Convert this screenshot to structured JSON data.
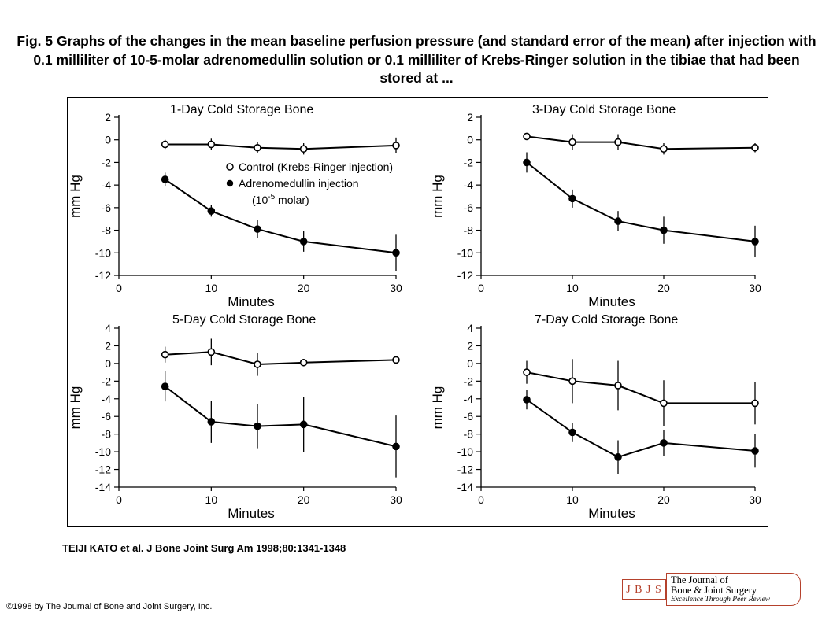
{
  "caption": "Fig. 5 Graphs of the changes in the mean baseline perfusion pressure (and standard error of the mean) after injection with 0.1 milliliter of 10-5-molar adrenomedullin solution or 0.1 milliliter of Krebs-Ringer solution in the tibiae that had been stored at ...",
  "citation": "TEIJI KATO et al. J Bone Joint Surg Am 1998;80:1341-1348",
  "copyright": "©1998 by The Journal of Bone and Joint Surgery, Inc.",
  "logo": {
    "box": "J B J S",
    "line1": "The Journal of",
    "line2": "Bone & Joint Surgery",
    "tagline": "Excellence Through Peer Review",
    "color": "#b5412c"
  },
  "chart_data": [
    {
      "type": "line",
      "title": "1-Day Cold Storage Bone",
      "xlabel": "Minutes",
      "ylabel": "mm Hg",
      "x": [
        5,
        10,
        15,
        20,
        30
      ],
      "xlim": [
        0,
        30
      ],
      "xticks": [
        "0",
        "10",
        "20",
        "30"
      ],
      "ylim": [
        -12,
        2
      ],
      "yticks": [
        "2",
        "0",
        "-2",
        "-4",
        "-6",
        "-8",
        "-10",
        "-12"
      ],
      "legend": {
        "placement": "middle",
        "control": "Control (Krebs-Ringer injection)",
        "adm": "Adrenomedullin injection",
        "adm_line2_pre": "(10",
        "adm_line2_sup": "-5",
        "adm_line2_post": " molar)"
      },
      "series": [
        {
          "marker": "open",
          "values": [
            -0.4,
            -0.4,
            -0.7,
            -0.8,
            -0.5
          ],
          "err": [
            0.4,
            0.5,
            0.5,
            0.5,
            0.7
          ]
        },
        {
          "marker": "filled",
          "values": [
            -3.5,
            -6.3,
            -7.9,
            -9.0,
            -10.0
          ],
          "err": [
            0.6,
            0.5,
            0.8,
            0.9,
            1.6
          ]
        }
      ]
    },
    {
      "type": "line",
      "title": "3-Day Cold Storage Bone",
      "xlabel": "Minutes",
      "ylabel": "mm Hg",
      "x": [
        5,
        10,
        15,
        20,
        30
      ],
      "xlim": [
        0,
        30
      ],
      "xticks": [
        "0",
        "10",
        "20",
        "30"
      ],
      "ylim": [
        -12,
        2
      ],
      "yticks": [
        "2",
        "0",
        "-2",
        "-4",
        "-6",
        "-8",
        "-10",
        "-12"
      ],
      "series": [
        {
          "marker": "open",
          "values": [
            0.3,
            -0.2,
            -0.2,
            -0.8,
            -0.7
          ],
          "err": [
            0.3,
            0.7,
            0.7,
            0.5,
            0.4
          ]
        },
        {
          "marker": "filled",
          "values": [
            -2.0,
            -5.2,
            -7.2,
            -8.0,
            -9.0
          ],
          "err": [
            0.9,
            0.8,
            0.9,
            1.2,
            1.4
          ]
        }
      ]
    },
    {
      "type": "line",
      "title": "5-Day Cold Storage Bone",
      "xlabel": "Minutes",
      "ylabel": "mm Hg",
      "x": [
        5,
        10,
        15,
        20,
        30
      ],
      "xlim": [
        0,
        30
      ],
      "xticks": [
        "0",
        "10",
        "20",
        "30"
      ],
      "ylim": [
        -14,
        4
      ],
      "yticks": [
        "4",
        "2",
        "0",
        "-2",
        "-4",
        "-6",
        "-8",
        "-10",
        "-12",
        "-14"
      ],
      "series": [
        {
          "marker": "open",
          "values": [
            1.0,
            1.3,
            -0.1,
            0.1,
            0.4
          ],
          "err": [
            0.9,
            1.5,
            1.3,
            0.4,
            0.4
          ]
        },
        {
          "marker": "filled",
          "values": [
            -2.6,
            -6.6,
            -7.1,
            -6.9,
            -9.4
          ],
          "err": [
            1.7,
            2.4,
            2.5,
            3.1,
            3.5
          ]
        }
      ]
    },
    {
      "type": "line",
      "title": "7-Day Cold Storage Bone",
      "xlabel": "Minutes",
      "ylabel": "mm Hg",
      "x": [
        5,
        10,
        15,
        20,
        30
      ],
      "xlim": [
        0,
        30
      ],
      "xticks": [
        "0",
        "10",
        "20",
        "30"
      ],
      "ylim": [
        -14,
        4
      ],
      "yticks": [
        "4",
        "2",
        "0",
        "-2",
        "-4",
        "-6",
        "-8",
        "-10",
        "-12",
        "-14"
      ],
      "series": [
        {
          "marker": "open",
          "values": [
            -1.0,
            -2.0,
            -2.5,
            -4.5,
            -4.5
          ],
          "err": [
            1.3,
            2.5,
            2.8,
            2.6,
            2.4
          ]
        },
        {
          "marker": "filled",
          "values": [
            -4.1,
            -7.8,
            -10.6,
            -9.0,
            -9.9
          ],
          "err": [
            1.1,
            1.1,
            1.9,
            1.5,
            1.9
          ]
        }
      ]
    }
  ]
}
